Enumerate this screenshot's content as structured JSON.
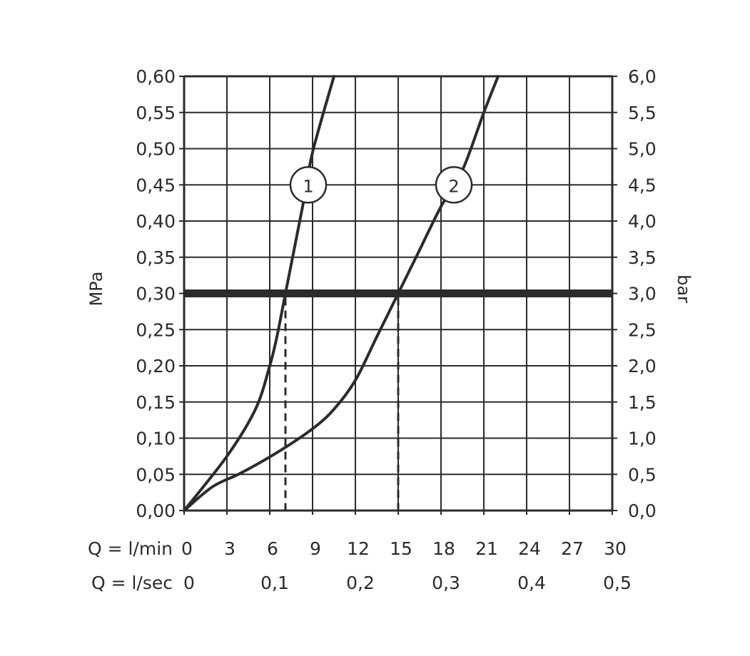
{
  "chart_data": {
    "type": "line",
    "title": "",
    "y_left": {
      "label": "MPa",
      "range": [
        0,
        0.6
      ],
      "ticks": [
        "0,00",
        "0,05",
        "0,10",
        "0,15",
        "0,20",
        "0,25",
        "0,30",
        "0,35",
        "0,40",
        "0,45",
        "0,50",
        "0,55",
        "0,60"
      ]
    },
    "y_right": {
      "label": "bar",
      "range": [
        0,
        6
      ],
      "ticks": [
        "0,0",
        "0,5",
        "1,0",
        "1,5",
        "2,0",
        "2,5",
        "3,0",
        "3,5",
        "4,0",
        "4,5",
        "5,0",
        "5,5",
        "6,0"
      ]
    },
    "x_primary": {
      "label": "Q = l/min",
      "range": [
        0,
        30
      ],
      "ticks": [
        "0",
        "3",
        "6",
        "9",
        "12",
        "15",
        "18",
        "21",
        "24",
        "27",
        "30"
      ]
    },
    "x_secondary": {
      "label": "Q = l/sec",
      "ticks": [
        {
          "q": 0,
          "label": "0"
        },
        {
          "q": 6,
          "label": "0,1"
        },
        {
          "q": 12,
          "label": "0,2"
        },
        {
          "q": 18,
          "label": "0,3"
        },
        {
          "q": 24,
          "label": "0,4"
        },
        {
          "q": 30,
          "label": "0,5"
        }
      ]
    },
    "grid": true,
    "series": [
      {
        "name": "1",
        "color": "#2b2b2b",
        "points": [
          [
            0,
            0
          ],
          [
            3,
            0.075
          ],
          [
            5,
            0.14
          ],
          [
            6,
            0.2
          ],
          [
            6.5,
            0.24
          ],
          [
            7.1,
            0.3
          ],
          [
            8.4,
            0.43
          ],
          [
            9,
            0.495
          ],
          [
            10.5,
            0.6
          ]
        ],
        "label_at": [
          8.7,
          0.45
        ]
      },
      {
        "name": "2",
        "color": "#2b2b2b",
        "points": [
          [
            0,
            0
          ],
          [
            2,
            0.033
          ],
          [
            4,
            0.052
          ],
          [
            6.5,
            0.08
          ],
          [
            9,
            0.113
          ],
          [
            10.5,
            0.14
          ],
          [
            12,
            0.18
          ],
          [
            13.5,
            0.24
          ],
          [
            15,
            0.3
          ],
          [
            16.5,
            0.36
          ],
          [
            18,
            0.42
          ],
          [
            19.5,
            0.47
          ],
          [
            21,
            0.55
          ],
          [
            22,
            0.6
          ]
        ],
        "label_at": [
          18.9,
          0.45
        ]
      }
    ],
    "reference_line": {
      "y": 0.3
    },
    "drop_lines": [
      {
        "x": 7.1,
        "y": 0.3
      },
      {
        "x": 15,
        "y": 0.3
      }
    ]
  }
}
